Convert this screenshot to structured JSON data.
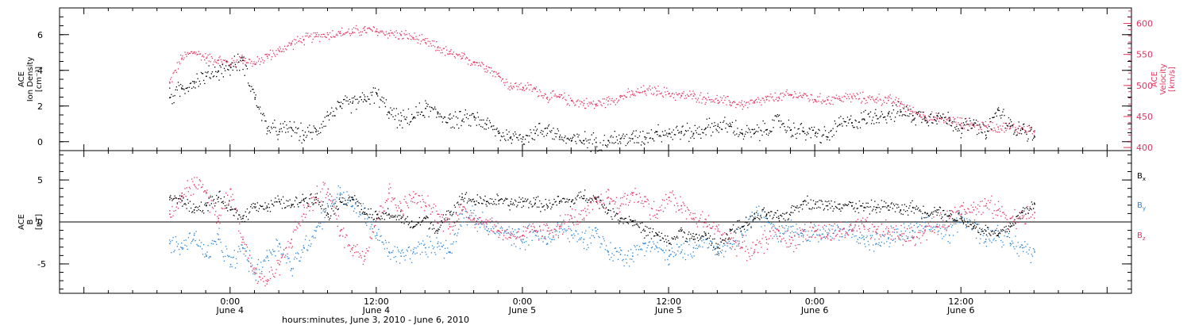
{
  "chart_data": [
    {
      "type": "scatter",
      "panel": "top",
      "ylabel_lines": [
        "ACE",
        "Ion Density",
        "[cm⁻³]"
      ],
      "ylabel2_lines": [
        "ACE",
        "Velocity",
        "[km/s]"
      ],
      "ylim": [
        -0.5,
        7.5
      ],
      "y_ticks": [
        0,
        2,
        4,
        6
      ],
      "y2lim": [
        395,
        625
      ],
      "y2_ticks": [
        400,
        450,
        500,
        550,
        600
      ],
      "grid": false,
      "series": [
        {
          "axis": "left",
          "color": "#000000",
          "x": [
            -5,
            -4,
            -3,
            -2,
            -1,
            0,
            1,
            2,
            3,
            4,
            5,
            6,
            7,
            8,
            9,
            10,
            11,
            12,
            13,
            14,
            15,
            16,
            17,
            18,
            19,
            20,
            21,
            22,
            23,
            24,
            25,
            26,
            27,
            28,
            29,
            30,
            31,
            32,
            33,
            34,
            35,
            36,
            37,
            38,
            39,
            40,
            41,
            42,
            43,
            44,
            45,
            46,
            47,
            48,
            49,
            50,
            51,
            52,
            53,
            54,
            55,
            56,
            57,
            58,
            59,
            60,
            61,
            62,
            63,
            64,
            65,
            66
          ],
          "values": [
            2.5,
            3.0,
            3.4,
            3.7,
            4.0,
            4.2,
            4.6,
            2.5,
            0.8,
            0.6,
            0.8,
            0.4,
            0.6,
            1.5,
            2.0,
            2.2,
            2.4,
            2.7,
            1.7,
            1.2,
            1.4,
            1.9,
            1.6,
            1.3,
            1.2,
            1.4,
            1.0,
            0.5,
            0.3,
            0.3,
            0.5,
            0.8,
            0.3,
            0.1,
            0.1,
            0.0,
            0.1,
            0.2,
            0.2,
            0.3,
            0.6,
            0.5,
            0.6,
            0.5,
            0.8,
            0.9,
            0.9,
            0.5,
            0.5,
            0.7,
            1.2,
            0.7,
            0.6,
            0.5,
            0.3,
            1.0,
            1.1,
            1.3,
            1.5,
            1.6,
            1.7,
            1.5,
            1.4,
            1.5,
            1.2,
            0.8,
            1.0,
            0.4,
            1.8,
            0.9,
            0.8,
            0.3
          ]
        },
        {
          "axis": "right",
          "color": "#e8325f",
          "x": [
            -5,
            -4,
            -3,
            -2,
            -1,
            0,
            1,
            2,
            3,
            4,
            5,
            6,
            7,
            8,
            9,
            10,
            11,
            12,
            13,
            14,
            15,
            16,
            17,
            18,
            19,
            20,
            21,
            22,
            23,
            24,
            25,
            26,
            27,
            28,
            29,
            30,
            31,
            32,
            33,
            34,
            35,
            36,
            37,
            38,
            39,
            40,
            41,
            42,
            43,
            44,
            45,
            46,
            47,
            48,
            49,
            50,
            51,
            52,
            53,
            54,
            55,
            56,
            57,
            58,
            59,
            60,
            61,
            62,
            63,
            64,
            65,
            66
          ],
          "values": [
            505,
            545,
            555,
            545,
            542,
            535,
            545,
            535,
            548,
            556,
            568,
            575,
            580,
            583,
            585,
            587,
            590,
            588,
            585,
            582,
            578,
            570,
            562,
            552,
            545,
            539,
            532,
            516,
            500,
            498,
            495,
            482,
            482,
            476,
            472,
            470,
            476,
            482,
            487,
            492,
            492,
            488,
            484,
            484,
            480,
            477,
            474,
            470,
            473,
            478,
            482,
            485,
            485,
            478,
            478,
            480,
            482,
            480,
            479,
            477,
            472,
            458,
            452,
            447,
            445,
            440,
            437,
            436,
            434,
            432,
            432,
            428
          ]
        }
      ]
    },
    {
      "type": "scatter",
      "panel": "bottom",
      "ylabel_lines": [
        "ACE",
        "B",
        "[nT]"
      ],
      "ylim": [
        -8.5,
        8.5
      ],
      "y_ticks": [
        -5,
        0,
        5
      ],
      "zero_line": true,
      "grid": false,
      "legend": {
        "placement": "right",
        "entries": [
          {
            "base": "B",
            "sub": "x",
            "color": "#000000"
          },
          {
            "base": "B",
            "sub": "y",
            "color": "#2a86d8"
          },
          {
            "base": "B",
            "sub": "z",
            "color": "#e8325f"
          }
        ]
      },
      "series": [
        {
          "color": "#000000",
          "x": [
            -5,
            -4,
            -3,
            -2,
            -1,
            0,
            1,
            2,
            3,
            4,
            5,
            6,
            7,
            8,
            9,
            10,
            11,
            12,
            13,
            14,
            15,
            16,
            17,
            18,
            19,
            20,
            21,
            22,
            23,
            24,
            25,
            26,
            27,
            28,
            29,
            30,
            31,
            32,
            33,
            34,
            35,
            36,
            37,
            38,
            39,
            40,
            41,
            42,
            43,
            44,
            45,
            46,
            47,
            48,
            49,
            50,
            51,
            52,
            53,
            54,
            55,
            56,
            57,
            58,
            59,
            60,
            61,
            62,
            63,
            64,
            65,
            66
          ],
          "values": [
            3.0,
            2.6,
            1.5,
            2.0,
            3.0,
            1.5,
            0.5,
            2.2,
            1.8,
            2.5,
            2.0,
            2.8,
            3.0,
            1.0,
            2.5,
            3.0,
            1.2,
            0.5,
            1.0,
            0.5,
            -0.5,
            0.5,
            -1.0,
            1.2,
            3.0,
            2.5,
            2.5,
            2.6,
            2.2,
            2.5,
            2.3,
            2.0,
            2.5,
            2.5,
            3.2,
            2.8,
            1.5,
            0.5,
            0.2,
            -1.0,
            -1.5,
            -2.5,
            -1.0,
            -2.0,
            -1.5,
            -3.0,
            -1.0,
            -0.5,
            0.5,
            1.0,
            0.5,
            1.2,
            2.5,
            2.2,
            2.0,
            2.2,
            2.0,
            1.8,
            1.8,
            2.0,
            1.5,
            1.8,
            1.2,
            1.5,
            0.8,
            0.5,
            -0.5,
            -1.0,
            -1.5,
            -0.5,
            1.2,
            2.2
          ]
        },
        {
          "color": "#2a86d8",
          "x": [
            -5,
            -4,
            -3,
            -2,
            -1,
            0,
            1,
            2,
            3,
            4,
            5,
            6,
            7,
            8,
            9,
            10,
            11,
            12,
            13,
            14,
            15,
            16,
            17,
            18,
            19,
            20,
            21,
            22,
            23,
            24,
            25,
            26,
            27,
            28,
            29,
            30,
            31,
            32,
            33,
            34,
            35,
            36,
            37,
            38,
            39,
            40,
            41,
            42,
            43,
            44,
            45,
            46,
            47,
            48,
            49,
            50,
            51,
            52,
            53,
            54,
            55,
            56,
            57,
            58,
            59,
            60,
            61,
            62,
            63,
            64,
            65,
            66
          ],
          "values": [
            -2.5,
            -3.0,
            -1.5,
            -4.0,
            -2.0,
            -5.0,
            -3.0,
            -6.0,
            -4.0,
            -2.5,
            -5.5,
            -3.0,
            -1.0,
            2.0,
            3.5,
            2.0,
            1.0,
            -1.5,
            -3.5,
            -4.0,
            -3.5,
            -3.0,
            -2.5,
            -3.5,
            1.0,
            0.5,
            -0.5,
            -1.0,
            -1.5,
            -2.0,
            -1.0,
            -2.5,
            -0.5,
            -1.5,
            -2.0,
            -1.0,
            -3.5,
            -3.8,
            -4.0,
            -2.5,
            -3.0,
            -4.0,
            -3.5,
            -3.0,
            -2.0,
            -3.5,
            -3.0,
            -1.5,
            1.0,
            0.5,
            -1.0,
            -0.5,
            -1.5,
            -1.0,
            -1.5,
            -1.0,
            -1.0,
            -2.0,
            -2.5,
            -1.8,
            -1.5,
            -1.0,
            -0.5,
            -0.5,
            -1.5,
            1.0,
            -0.5,
            -2.0,
            -1.0,
            -2.5,
            -3.0,
            -3.5
          ]
        },
        {
          "color": "#e8325f",
          "x": [
            -5,
            -4,
            -3,
            -2,
            -1,
            0,
            1,
            2,
            3,
            4,
            5,
            6,
            7,
            8,
            9,
            10,
            11,
            12,
            13,
            14,
            15,
            16,
            17,
            18,
            19,
            20,
            21,
            22,
            23,
            24,
            25,
            26,
            27,
            28,
            29,
            30,
            31,
            32,
            33,
            34,
            35,
            36,
            37,
            38,
            39,
            40,
            41,
            42,
            43,
            44,
            45,
            46,
            47,
            48,
            49,
            50,
            51,
            52,
            53,
            54,
            55,
            56,
            57,
            58,
            59,
            60,
            61,
            62,
            63,
            64,
            65,
            66
          ],
          "values": [
            1.0,
            3.5,
            4.5,
            3.5,
            0.5,
            4.0,
            -2.0,
            -6.0,
            -7.0,
            -5.0,
            -2.0,
            1.0,
            3.0,
            4.0,
            -1.0,
            -3.0,
            -4.0,
            0.5,
            3.5,
            1.5,
            3.0,
            2.0,
            1.0,
            -0.5,
            1.5,
            0.5,
            0.0,
            -1.0,
            -1.5,
            -1.5,
            -1.0,
            -1.0,
            -0.5,
            0.5,
            0.5,
            2.5,
            3.0,
            2.0,
            3.5,
            2.5,
            1.0,
            3.0,
            2.0,
            0.5,
            0.0,
            -1.0,
            -2.0,
            -3.0,
            -3.5,
            -2.0,
            -1.0,
            -2.5,
            -1.0,
            -1.0,
            -1.5,
            -1.0,
            -1.0,
            -0.5,
            -1.2,
            -1.0,
            -1.5,
            -1.8,
            -1.0,
            -0.5,
            0.5,
            2.0,
            1.5,
            2.0,
            1.5,
            0.5,
            0.5,
            1.2
          ]
        }
      ]
    }
  ],
  "x_axis": {
    "range_hours": [
      -14,
      74
    ],
    "major_ticks": [
      {
        "hour": 0,
        "time": "0:00",
        "date": "June 4"
      },
      {
        "hour": 12,
        "time": "12:00",
        "date": "June 4"
      },
      {
        "hour": 24,
        "time": "0:00",
        "date": "June 5"
      },
      {
        "hour": 36,
        "time": "12:00",
        "date": "June 5"
      },
      {
        "hour": 48,
        "time": "0:00",
        "date": "June 6"
      },
      {
        "hour": 60,
        "time": "12:00",
        "date": "June 6"
      }
    ],
    "title": "hours:minutes, June  3, 2010 - June  6, 2010"
  },
  "colors": {
    "black": "#000000",
    "pink": "#e8325f",
    "blue": "#2a86d8"
  }
}
